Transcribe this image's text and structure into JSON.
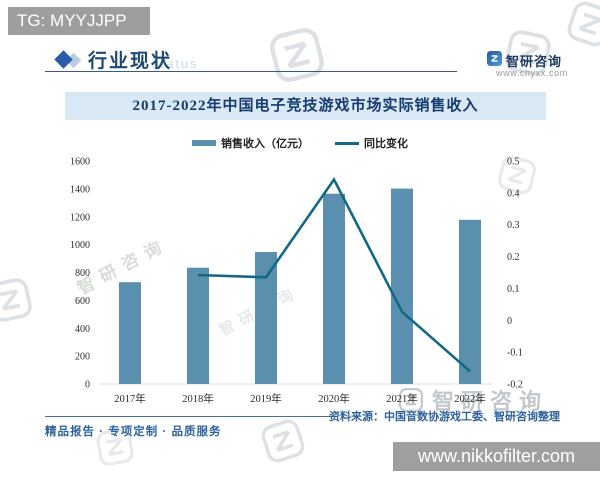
{
  "overlay": {
    "telegram_badge": "TG: MYYJJPP",
    "site_badge": "www.nikkofilter.com"
  },
  "header": {
    "section_title": "行业现状",
    "background_watermark": "status",
    "brand_name": "智研咨询",
    "brand_url": "www.chyxx.com"
  },
  "chart_data": {
    "type": "bar+line",
    "title": "2017-2022年中国电子竞技游戏市场实际销售收入",
    "categories": [
      "2017年",
      "2018年",
      "2019年",
      "2020年",
      "2021年",
      "2022年"
    ],
    "series": [
      {
        "name": "销售收入（亿元）",
        "type": "bar",
        "axis": "left",
        "color": "#5b8fae",
        "values": [
          730.5,
          834.4,
          947.3,
          1365.6,
          1401.8,
          1178.0
        ]
      },
      {
        "name": "同比变化",
        "type": "line",
        "axis": "right",
        "color": "#136884",
        "values": [
          null,
          0.142,
          0.135,
          0.442,
          0.027,
          -0.16
        ]
      }
    ],
    "left_axis": {
      "min": 0,
      "max": 1600,
      "ticks": [
        0,
        200,
        400,
        600,
        800,
        1000,
        1200,
        1400,
        1600
      ]
    },
    "right_axis": {
      "min": -0.2,
      "max": 0.5,
      "ticks": [
        0.5,
        0.4,
        0.3,
        0.2,
        0.1,
        0,
        -0.1,
        -0.2
      ]
    },
    "grid": false,
    "legend_position": "top"
  },
  "footer": {
    "slogan": "精品报告 · 专项定制 · 品质服务",
    "source": "资料来源：中国音数协游戏工委、智研咨询整理"
  },
  "branding": {
    "watermark_text": "智研咨询",
    "accent_color": "#2a5caa",
    "bar_color": "#5b8fae",
    "line_color": "#136884",
    "title_band_color": "#d9e8f5"
  }
}
